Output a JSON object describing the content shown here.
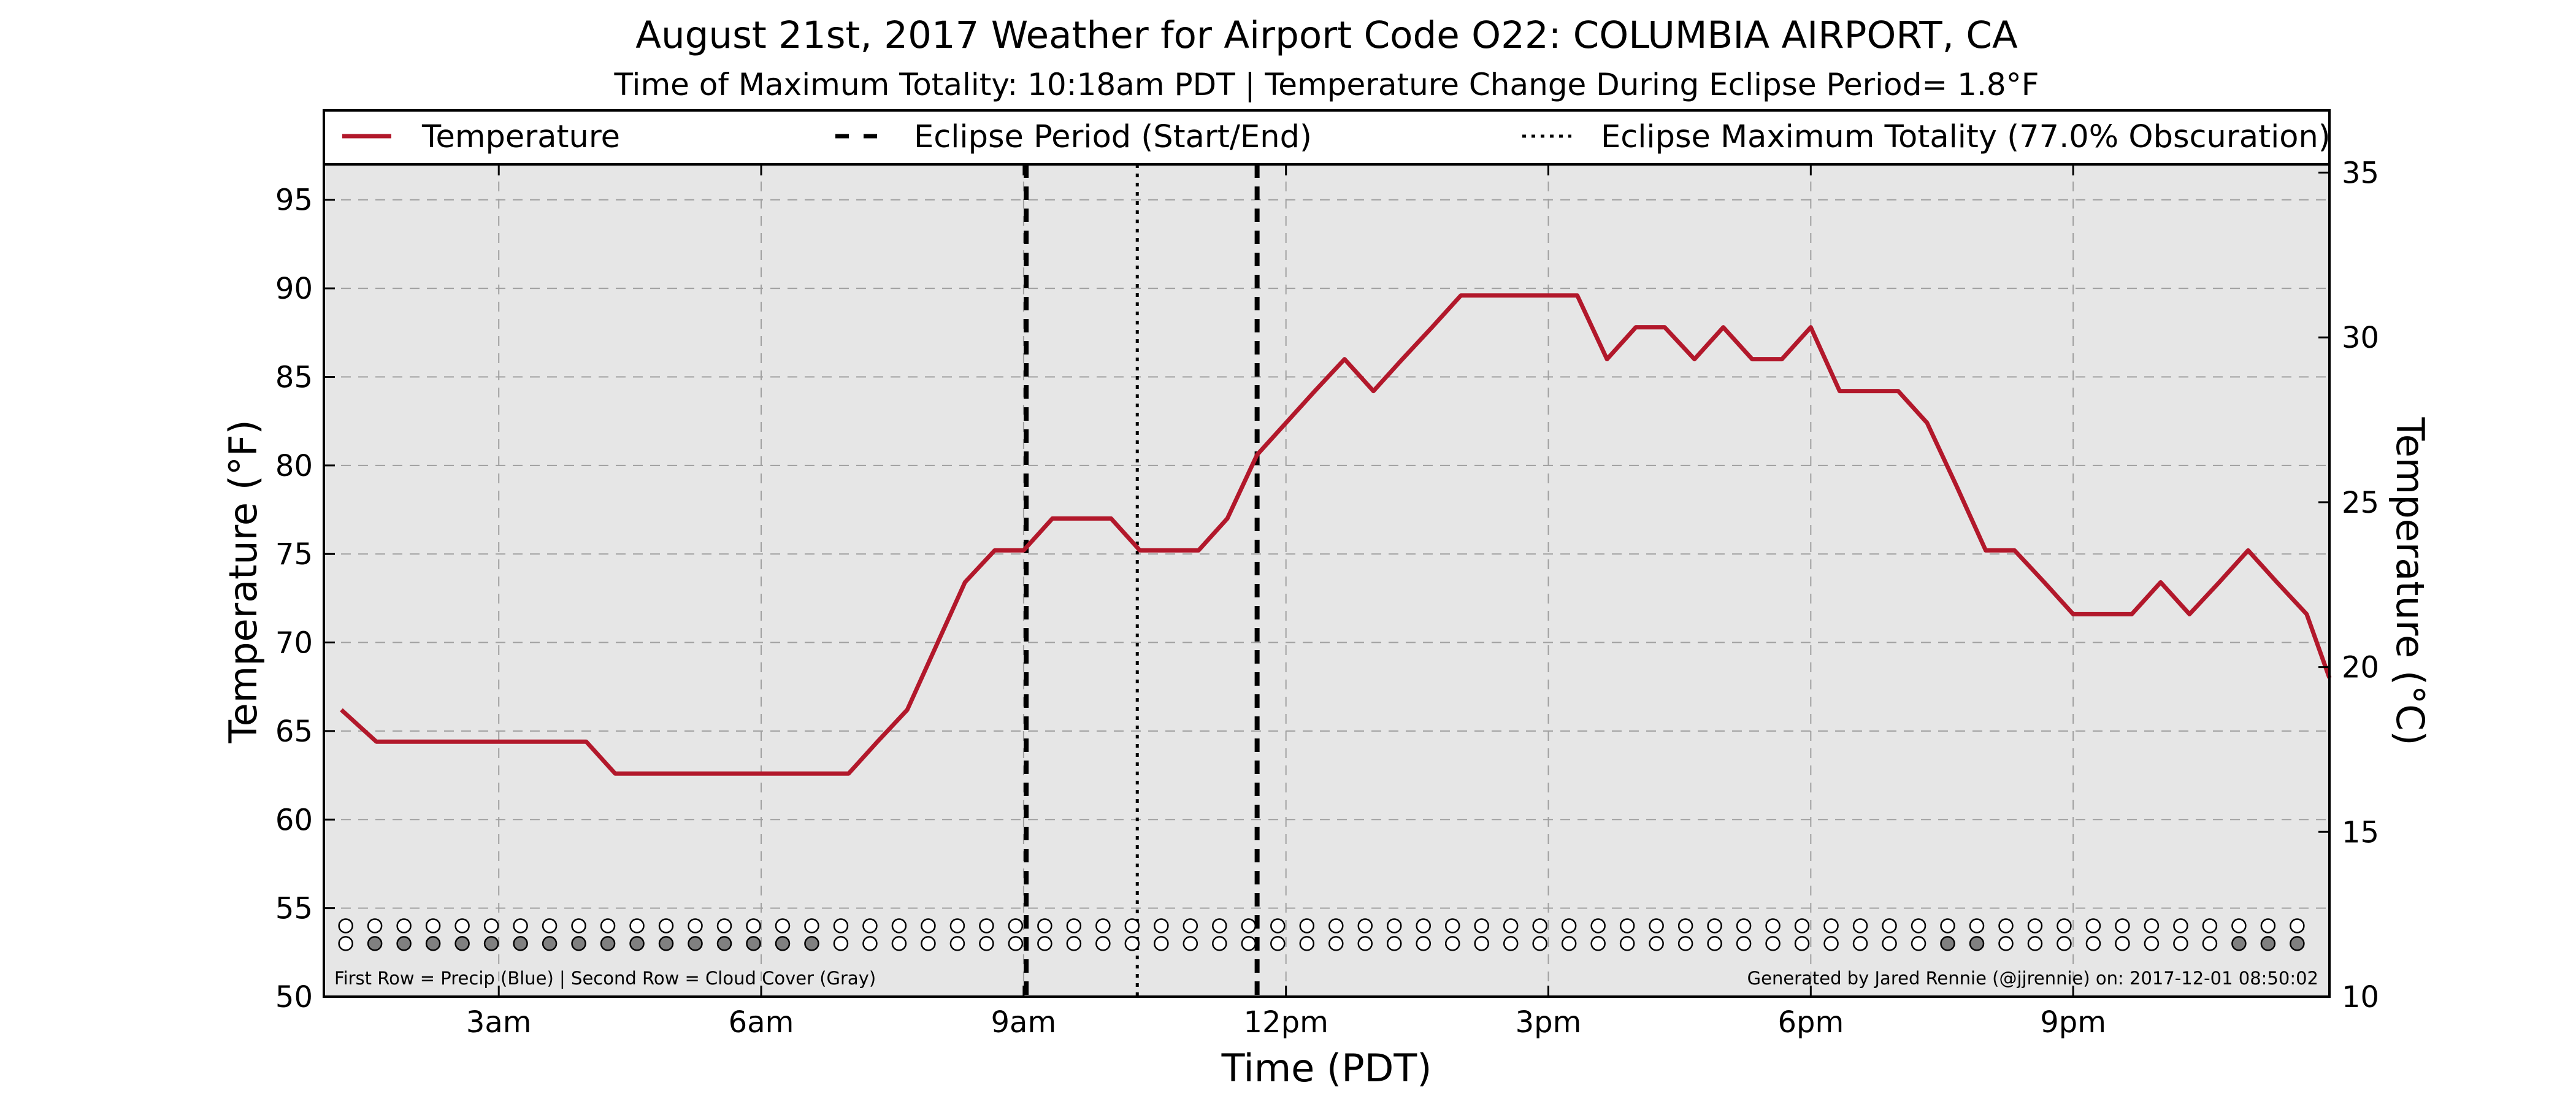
{
  "chart_data": {
    "type": "line",
    "title": "August 21st, 2017 Weather for Airport Code O22: COLUMBIA AIRPORT, CA",
    "subtitle": "Time of Maximum Totality: 10:18am PDT | Temperature Change During Eclipse Period= 1.8°F",
    "xlabel": "Time (PDT)",
    "ylabel": "Temperature (°F)",
    "ylabel_right": "Temperature (°C)",
    "xlim": [
      1.0,
      23.93
    ],
    "ylim": [
      50,
      97
    ],
    "ylim_right": [
      10,
      35.25
    ],
    "x_ticks": [
      {
        "value": 3,
        "label": "3am"
      },
      {
        "value": 6,
        "label": "6am"
      },
      {
        "value": 9,
        "label": "9am"
      },
      {
        "value": 12,
        "label": "12pm"
      },
      {
        "value": 15,
        "label": "3pm"
      },
      {
        "value": 18,
        "label": "6pm"
      },
      {
        "value": 21,
        "label": "9pm"
      }
    ],
    "y_ticks": [
      {
        "value": 50,
        "label": "50"
      },
      {
        "value": 55,
        "label": "55"
      },
      {
        "value": 60,
        "label": "60"
      },
      {
        "value": 65,
        "label": "65"
      },
      {
        "value": 70,
        "label": "70"
      },
      {
        "value": 75,
        "label": "75"
      },
      {
        "value": 80,
        "label": "80"
      },
      {
        "value": 85,
        "label": "85"
      },
      {
        "value": 90,
        "label": "90"
      },
      {
        "value": 95,
        "label": "95"
      }
    ],
    "y_ticks_right": [
      {
        "value": 10,
        "label": "10"
      },
      {
        "value": 15,
        "label": "15"
      },
      {
        "value": 20,
        "label": "20"
      },
      {
        "value": 25,
        "label": "25"
      },
      {
        "value": 30,
        "label": "30"
      },
      {
        "value": 35,
        "label": "35"
      }
    ],
    "grid": true,
    "legend": {
      "placement": "top",
      "entries": [
        {
          "label": "Temperature",
          "style": "solid"
        },
        {
          "label": "Eclipse Period (Start/End)",
          "style": "dashed"
        },
        {
          "label": "Eclipse Maximum Totality (77.0% Obscuration)",
          "style": "dotted"
        }
      ]
    },
    "series": [
      {
        "name": "Temperature",
        "color": "#b2182b",
        "x": [
          1.2,
          1.6,
          2.0,
          2.33,
          2.67,
          3.0,
          3.33,
          3.67,
          4.0,
          4.33,
          4.67,
          5.0,
          5.33,
          5.67,
          6.0,
          6.33,
          6.67,
          7.0,
          7.33,
          7.67,
          8.0,
          8.33,
          8.67,
          9.0,
          9.33,
          9.67,
          10.0,
          10.33,
          10.67,
          11.0,
          11.33,
          11.67,
          12.0,
          12.33,
          12.67,
          13.0,
          13.33,
          13.67,
          14.0,
          14.33,
          14.67,
          15.0,
          15.33,
          15.67,
          16.0,
          16.33,
          16.67,
          17.0,
          17.33,
          17.67,
          18.0,
          18.33,
          18.67,
          19.0,
          19.33,
          19.67,
          20.0,
          20.33,
          20.67,
          21.0,
          21.33,
          21.67,
          22.0,
          22.33,
          22.67,
          23.0,
          23.33,
          23.67,
          23.93
        ],
        "y": [
          66.2,
          64.4,
          64.4,
          64.4,
          64.4,
          64.4,
          64.4,
          64.4,
          64.4,
          62.6,
          62.6,
          62.6,
          62.6,
          62.6,
          62.6,
          62.6,
          62.6,
          62.6,
          64.4,
          66.2,
          69.8,
          73.4,
          75.2,
          75.2,
          77.0,
          77.0,
          77.0,
          75.2,
          75.2,
          75.2,
          77.0,
          80.6,
          82.4,
          84.2,
          86.0,
          84.2,
          86.0,
          87.8,
          89.6,
          89.6,
          89.6,
          89.6,
          89.6,
          86.0,
          87.8,
          87.8,
          86.0,
          87.8,
          86.0,
          86.0,
          87.8,
          84.2,
          84.2,
          84.2,
          82.4,
          78.8,
          75.2,
          75.2,
          73.4,
          71.6,
          71.6,
          71.6,
          73.4,
          71.6,
          73.4,
          75.2,
          73.4,
          71.6,
          68.0
        ]
      }
    ],
    "eclipse_period": {
      "start": 9.03,
      "end": 11.67,
      "style": "dashed",
      "color": "#000000"
    },
    "eclipse_max_totality": {
      "x": 10.3,
      "style": "dotted",
      "color": "#000000"
    },
    "indicator_rows": {
      "markers_x_start": 1.25,
      "markers_x_step": 0.333,
      "markers_count": 68,
      "precip_row": {
        "y": 54.0,
        "filled": []
      },
      "cloud_row": {
        "y": 53.0,
        "fill_color": "#808080",
        "filled": [
          1,
          2,
          3,
          4,
          5,
          6,
          7,
          8,
          9,
          10,
          11,
          12,
          13,
          14,
          15,
          16,
          55,
          56,
          65,
          66,
          67
        ]
      }
    },
    "note_left": "First Row = Precip (Blue) | Second Row = Cloud Cover (Gray)",
    "note_right": "Generated by Jared Rennie (@jjrennie) on: 2017-12-01 08:50:02",
    "colors": {
      "plot_background": "#e6e6e6",
      "grid": "#a0a0a0",
      "line": "#b2182b"
    }
  }
}
